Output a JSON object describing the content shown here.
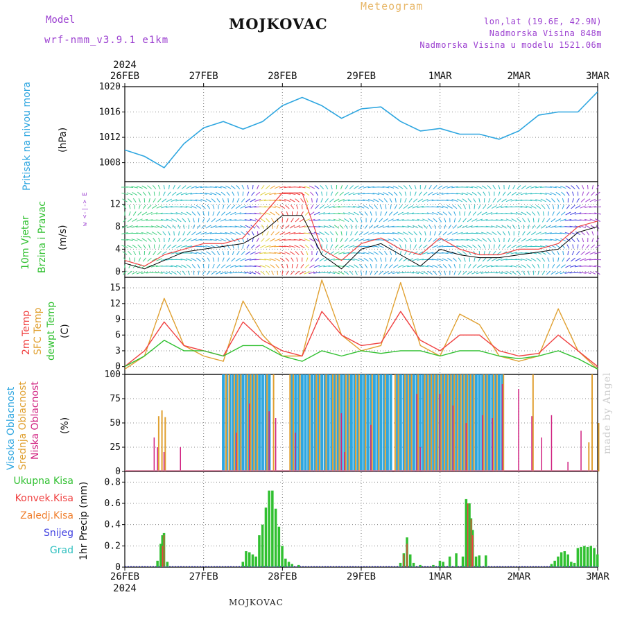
{
  "header": {
    "model_label": "Model",
    "model_value": "wrf-nmm_v3.9.1 e1km",
    "station": "MOJKOVAC",
    "meteogram": "Meteogram",
    "coords": "lon,lat (19.6E, 42.9N)",
    "elevation": "Nadmorska Visina 848m",
    "model_elevation": "Nadmorska Visina u modelu 1521.06m",
    "watermark": "made by Angel",
    "footer": "MOJKOVAC",
    "year": "2024"
  },
  "axis_days": [
    "26FEB",
    "27FEB",
    "28FEB",
    "29FEB",
    "1MAR",
    "2MAR",
    "3MAR"
  ],
  "panels": {
    "pressure": {
      "label": "Pritisak na nivou mora",
      "unit": "(hPa)"
    },
    "wind": {
      "label1": "10m Vjetar",
      "label2": "Brzina i Pravac",
      "unit": "(m/s)",
      "compass": "w <-|-> E"
    },
    "temp": {
      "label1": "2m Temp",
      "label2": "SFC Temp",
      "label3": "dewpt Temp",
      "unit": "(C)"
    },
    "cloud": {
      "label1": "Visoka Oblacnost",
      "label2": "Srednja Oblacnost",
      "label3": "Niska Oblacnost",
      "unit": "(%)"
    },
    "precip": {
      "unit": "1hr Precip (mm)",
      "legend": [
        "Ukupna Kisa",
        "Konvek.Kisa",
        "Zaledj.Kisa",
        "Snijeg",
        "Grad"
      ]
    }
  },
  "colors": {
    "pressure": "#2ea6e0",
    "temp2m": "#f04040",
    "sfc": "#e0a030",
    "dewpt": "#30c030",
    "high_cloud": "#2ea6e0",
    "mid_cloud": "#e0a030",
    "low_cloud": "#d02080",
    "rain": "#30c030",
    "conv": "#f04040",
    "frz": "#f08030",
    "snow": "#4040e0",
    "hail": "#30c0c0",
    "wind_gust": "#f04040",
    "wind_mean": "#000000"
  },
  "chart_data": [
    {
      "type": "line",
      "name": "pressure",
      "x_hours": [
        0,
        6,
        12,
        18,
        24,
        30,
        36,
        42,
        48,
        54,
        60,
        66,
        72,
        78,
        84,
        90,
        96,
        102,
        108,
        114,
        120,
        126,
        132,
        138,
        144
      ],
      "values": [
        1010,
        1009,
        1007.2,
        1011,
        1013.5,
        1014.5,
        1013.3,
        1014.5,
        1017,
        1018.3,
        1017,
        1015,
        1016.5,
        1016.8,
        1014.5,
        1013,
        1013.4,
        1012.5,
        1012.5,
        1011.7,
        1013,
        1015.5,
        1016,
        1016,
        1019.2
      ],
      "ylim": [
        1005,
        1020
      ],
      "yticks": [
        1008,
        1012,
        1016,
        1020
      ]
    },
    {
      "type": "line",
      "name": "wind",
      "x_hours": [
        0,
        6,
        12,
        18,
        24,
        30,
        36,
        42,
        48,
        54,
        60,
        66,
        72,
        78,
        84,
        90,
        96,
        102,
        108,
        114,
        120,
        126,
        132,
        138,
        144
      ],
      "gust": [
        2,
        1,
        3,
        4,
        5,
        5,
        6,
        10,
        14,
        14,
        4,
        2,
        5,
        6,
        4,
        3,
        6,
        4,
        3,
        3,
        4,
        4,
        5,
        8,
        9
      ],
      "mean": [
        1.5,
        0.5,
        2,
        3.5,
        4,
        4.5,
        5,
        7,
        10,
        10,
        3,
        0.5,
        4,
        5,
        3,
        1,
        4,
        3,
        2.5,
        2.5,
        3,
        3.5,
        4,
        7,
        8
      ],
      "ylim": [
        -1,
        16
      ],
      "yticks": [
        0,
        4,
        8,
        12
      ]
    },
    {
      "type": "line",
      "name": "temperature",
      "x_hours": [
        0,
        6,
        12,
        18,
        24,
        30,
        36,
        42,
        48,
        54,
        60,
        66,
        72,
        78,
        84,
        90,
        96,
        102,
        108,
        114,
        120,
        126,
        132,
        138,
        144
      ],
      "t2m": [
        0,
        3,
        8.5,
        4,
        3,
        2,
        8.5,
        5,
        3,
        2,
        10.5,
        6,
        4,
        4.5,
        10.5,
        5,
        3,
        6,
        6,
        3,
        2,
        2.5,
        6,
        3,
        0
      ],
      "sfc": [
        -0.5,
        2,
        13,
        4,
        2,
        1,
        12.5,
        6,
        2,
        2,
        16.5,
        6,
        3,
        4,
        16,
        4,
        2,
        10,
        8,
        2,
        1,
        2,
        11,
        3,
        -0.5
      ],
      "dewpt": [
        0,
        2,
        5,
        3,
        3,
        2,
        4,
        4,
        2,
        1,
        3,
        2,
        3,
        2.5,
        3,
        3,
        2,
        3,
        3,
        2,
        1.5,
        2,
        3,
        1.5,
        -0.5
      ],
      "ylim": [
        -1.5,
        17
      ],
      "yticks": [
        0,
        3,
        6,
        9,
        12,
        15
      ]
    },
    {
      "type": "bar",
      "name": "cloud",
      "ylim": [
        0,
        100
      ],
      "yticks": [
        0,
        25,
        50,
        75,
        100
      ],
      "high_ranges_hours": [
        [
          30,
          32
        ],
        [
          33,
          44
        ],
        [
          51,
          55
        ],
        [
          56,
          81
        ],
        [
          83,
          115
        ]
      ],
      "mid_hours": [
        10,
        11,
        12,
        30.5,
        31.5,
        33,
        34,
        35,
        37,
        38,
        39,
        40,
        43,
        45,
        50,
        51,
        53,
        56,
        58,
        59,
        61,
        63,
        64,
        65,
        67,
        68,
        70,
        71,
        73,
        75,
        77,
        79,
        82,
        83,
        85,
        86,
        87,
        89,
        91,
        92,
        93,
        94,
        95,
        96,
        97,
        98,
        99,
        100,
        101,
        102,
        103,
        104,
        105,
        106,
        109,
        110,
        112,
        113,
        115,
        124,
        141,
        142,
        144
      ],
      "mid_values": [
        57,
        63,
        56,
        100,
        100,
        100,
        100,
        100,
        100,
        100,
        100,
        100,
        100,
        100,
        100,
        100,
        100,
        100,
        100,
        100,
        100,
        100,
        100,
        100,
        100,
        100,
        100,
        100,
        100,
        100,
        100,
        100,
        100,
        100,
        100,
        100,
        100,
        100,
        100,
        100,
        100,
        100,
        100,
        100,
        100,
        100,
        100,
        100,
        100,
        100,
        100,
        100,
        100,
        100,
        100,
        100,
        100,
        100,
        100,
        100,
        30,
        100,
        50
      ],
      "low_hours": [
        9,
        10,
        12,
        17,
        34,
        38,
        44,
        46,
        52,
        66,
        67,
        75,
        89,
        90,
        96,
        100,
        104,
        109,
        112,
        115,
        120,
        124,
        127,
        130,
        135,
        139
      ],
      "low_values": [
        35,
        25,
        20,
        25,
        40,
        70,
        62,
        55,
        40,
        60,
        20,
        48,
        80,
        25,
        80,
        68,
        50,
        58,
        55,
        90,
        85,
        57,
        35,
        58,
        10,
        42
      ]
    },
    {
      "type": "bar",
      "name": "precip",
      "ylim": [
        0,
        0.9
      ],
      "yticks": [
        0,
        0.2,
        0.4,
        0.6,
        0.8
      ],
      "rain_hours": [
        10,
        11,
        11.5,
        12,
        13,
        36,
        37,
        38,
        39,
        40,
        41,
        42,
        43,
        44,
        45,
        46,
        47,
        48,
        49,
        50,
        51,
        53,
        84,
        85,
        86,
        87,
        88,
        90,
        94,
        96,
        97,
        99,
        101,
        103,
        104,
        105,
        105.5,
        106,
        107,
        108,
        110,
        130,
        131,
        132,
        133,
        134,
        135,
        136,
        137,
        138,
        139,
        140,
        141,
        142,
        143,
        144
      ],
      "rain_values": [
        0.06,
        0.22,
        0.3,
        0.32,
        0.05,
        0.05,
        0.15,
        0.14,
        0.12,
        0.1,
        0.3,
        0.4,
        0.56,
        0.72,
        0.72,
        0.55,
        0.38,
        0.2,
        0.08,
        0.05,
        0.03,
        0.02,
        0.04,
        0.13,
        0.28,
        0.12,
        0.04,
        0.02,
        0.02,
        0.06,
        0.05,
        0.1,
        0.13,
        0.1,
        0.64,
        0.6,
        0.46,
        0.35,
        0.1,
        0.11,
        0.11,
        0.03,
        0.06,
        0.1,
        0.14,
        0.15,
        0.12,
        0.05,
        0.04,
        0.18,
        0.19,
        0.2,
        0.19,
        0.2,
        0.18,
        0.12
      ],
      "conv_hours": [
        11.5,
        12,
        85,
        86,
        104.5,
        105.5,
        106
      ],
      "conv_values": [
        0.2,
        0.3,
        0.12,
        0.22,
        0.6,
        0.45,
        0.3
      ]
    }
  ]
}
